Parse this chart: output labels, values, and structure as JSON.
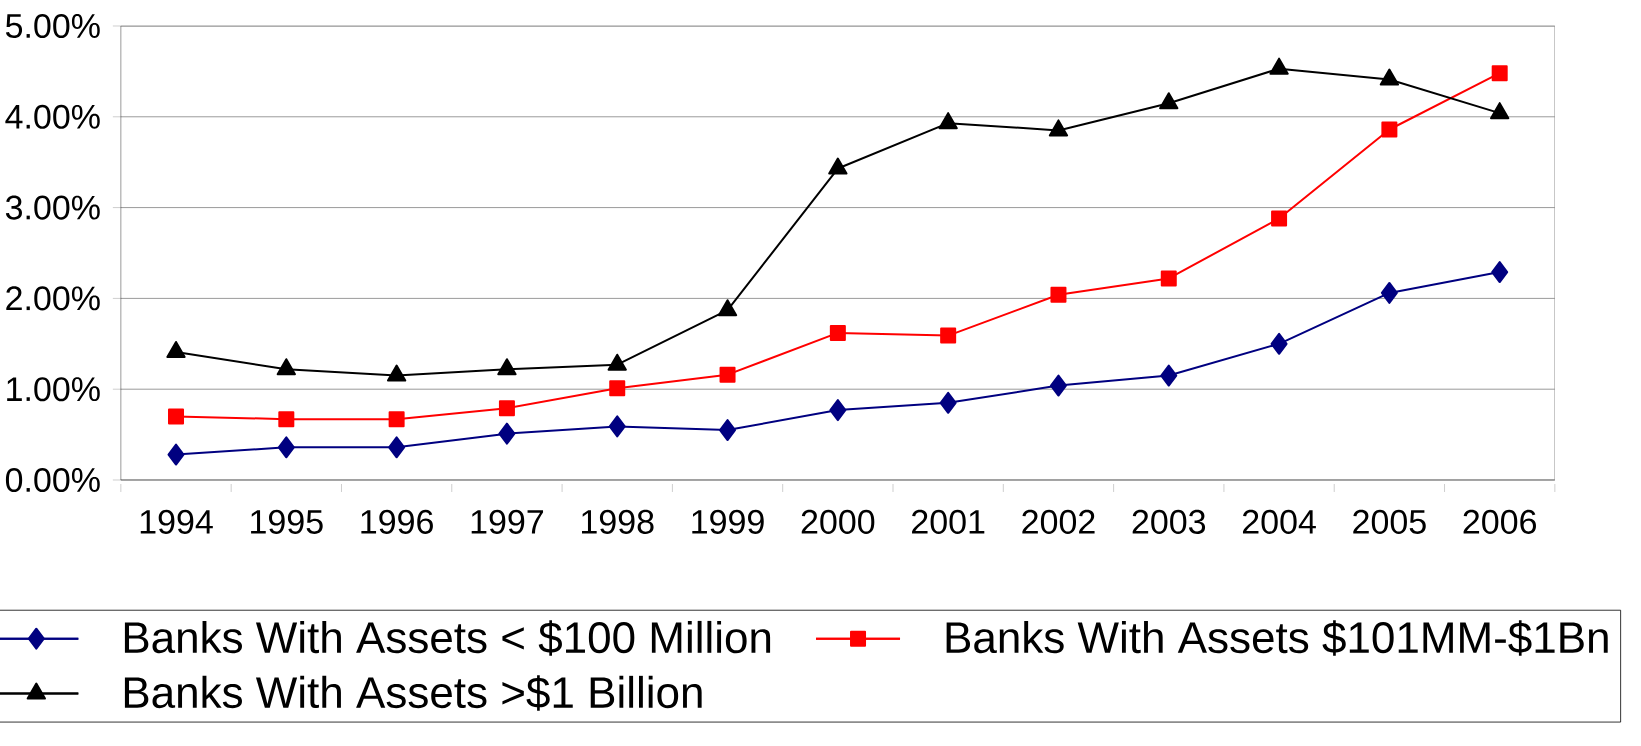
{
  "chart_data": {
    "type": "line",
    "categories": [
      "1994",
      "1995",
      "1996",
      "1997",
      "1998",
      "1999",
      "2000",
      "2001",
      "2002",
      "2003",
      "2004",
      "2005",
      "2006"
    ],
    "series": [
      {
        "name": "Banks With Assets < $100 Million",
        "color": "#000080",
        "marker": "diamond",
        "values": [
          0.28,
          0.36,
          0.36,
          0.51,
          0.59,
          0.55,
          0.77,
          0.85,
          1.04,
          1.15,
          1.5,
          2.06,
          2.29
        ]
      },
      {
        "name": "Banks With Assets $101MM-$1Bn",
        "color": "#ff0000",
        "marker": "square",
        "values": [
          0.7,
          0.67,
          0.67,
          0.79,
          1.01,
          1.16,
          1.62,
          1.59,
          2.04,
          2.22,
          2.88,
          3.86,
          4.48
        ]
      },
      {
        "name": "Banks With Assets >$1 Billion",
        "color": "#000000",
        "marker": "triangle",
        "values": [
          1.41,
          1.22,
          1.15,
          1.22,
          1.27,
          1.87,
          3.43,
          3.93,
          3.85,
          4.15,
          4.53,
          4.41,
          4.04
        ]
      }
    ],
    "ylim": [
      0,
      5
    ],
    "yticks": [
      {
        "value": 0,
        "label": "0.00%"
      },
      {
        "value": 1,
        "label": "1.00%"
      },
      {
        "value": 2,
        "label": "2.00%"
      },
      {
        "value": 3,
        "label": "3.00%"
      },
      {
        "value": 4,
        "label": "4.00%"
      },
      {
        "value": 5,
        "label": "5.00%"
      }
    ],
    "grid": "y",
    "legend": "bottom"
  }
}
